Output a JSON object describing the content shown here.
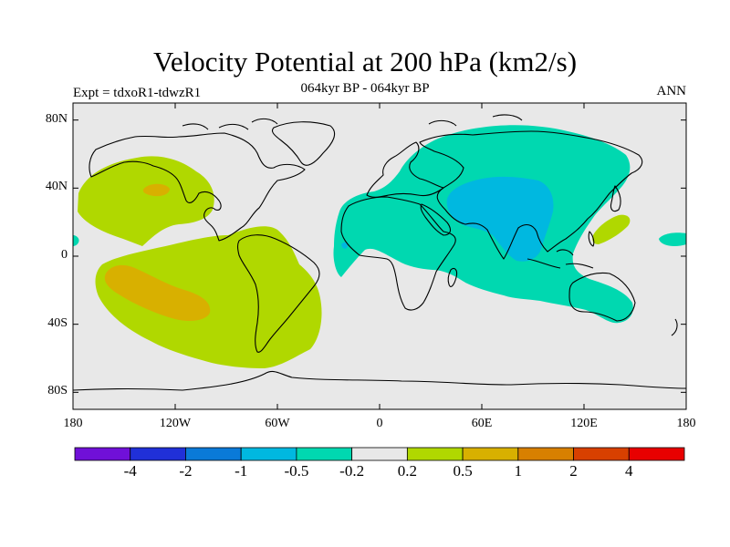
{
  "title": "Velocity Potential at 200 hPa (km2/s)",
  "subtitle": "064kyr BP - 064kyr BP",
  "experiment": "Expt = tdxoR1-tdwzR1",
  "season": "ANN",
  "map": {
    "projection": "cylindrical-equidistant",
    "lon_range": [
      -180,
      180
    ],
    "lat_range": [
      -90,
      90
    ],
    "y_ticks": [
      {
        "value": 80,
        "label": "80N"
      },
      {
        "value": 40,
        "label": "40N"
      },
      {
        "value": 0,
        "label": "0"
      },
      {
        "value": -40,
        "label": "40S"
      },
      {
        "value": -80,
        "label": "80S"
      }
    ],
    "x_ticks": [
      {
        "value": -180,
        "label": "180"
      },
      {
        "value": -120,
        "label": "120W"
      },
      {
        "value": -60,
        "label": "60W"
      },
      {
        "value": 0,
        "label": "0"
      },
      {
        "value": 60,
        "label": "60E"
      },
      {
        "value": 120,
        "label": "120E"
      },
      {
        "value": 180,
        "label": "180"
      }
    ],
    "background_color": "#e8e8e8"
  },
  "colorbar": {
    "colors": [
      "#7010d8",
      "#2030d8",
      "#0a7ad8",
      "#00b8e0",
      "#00d8b0",
      "#e8e8e8",
      "#b0d800",
      "#d8b000",
      "#d88000",
      "#d84000",
      "#e80000"
    ],
    "labels": [
      "-4",
      "-2",
      "-1",
      "-0.5",
      "-0.2",
      "0.2",
      "0.5",
      "1",
      "2",
      "4"
    ]
  }
}
